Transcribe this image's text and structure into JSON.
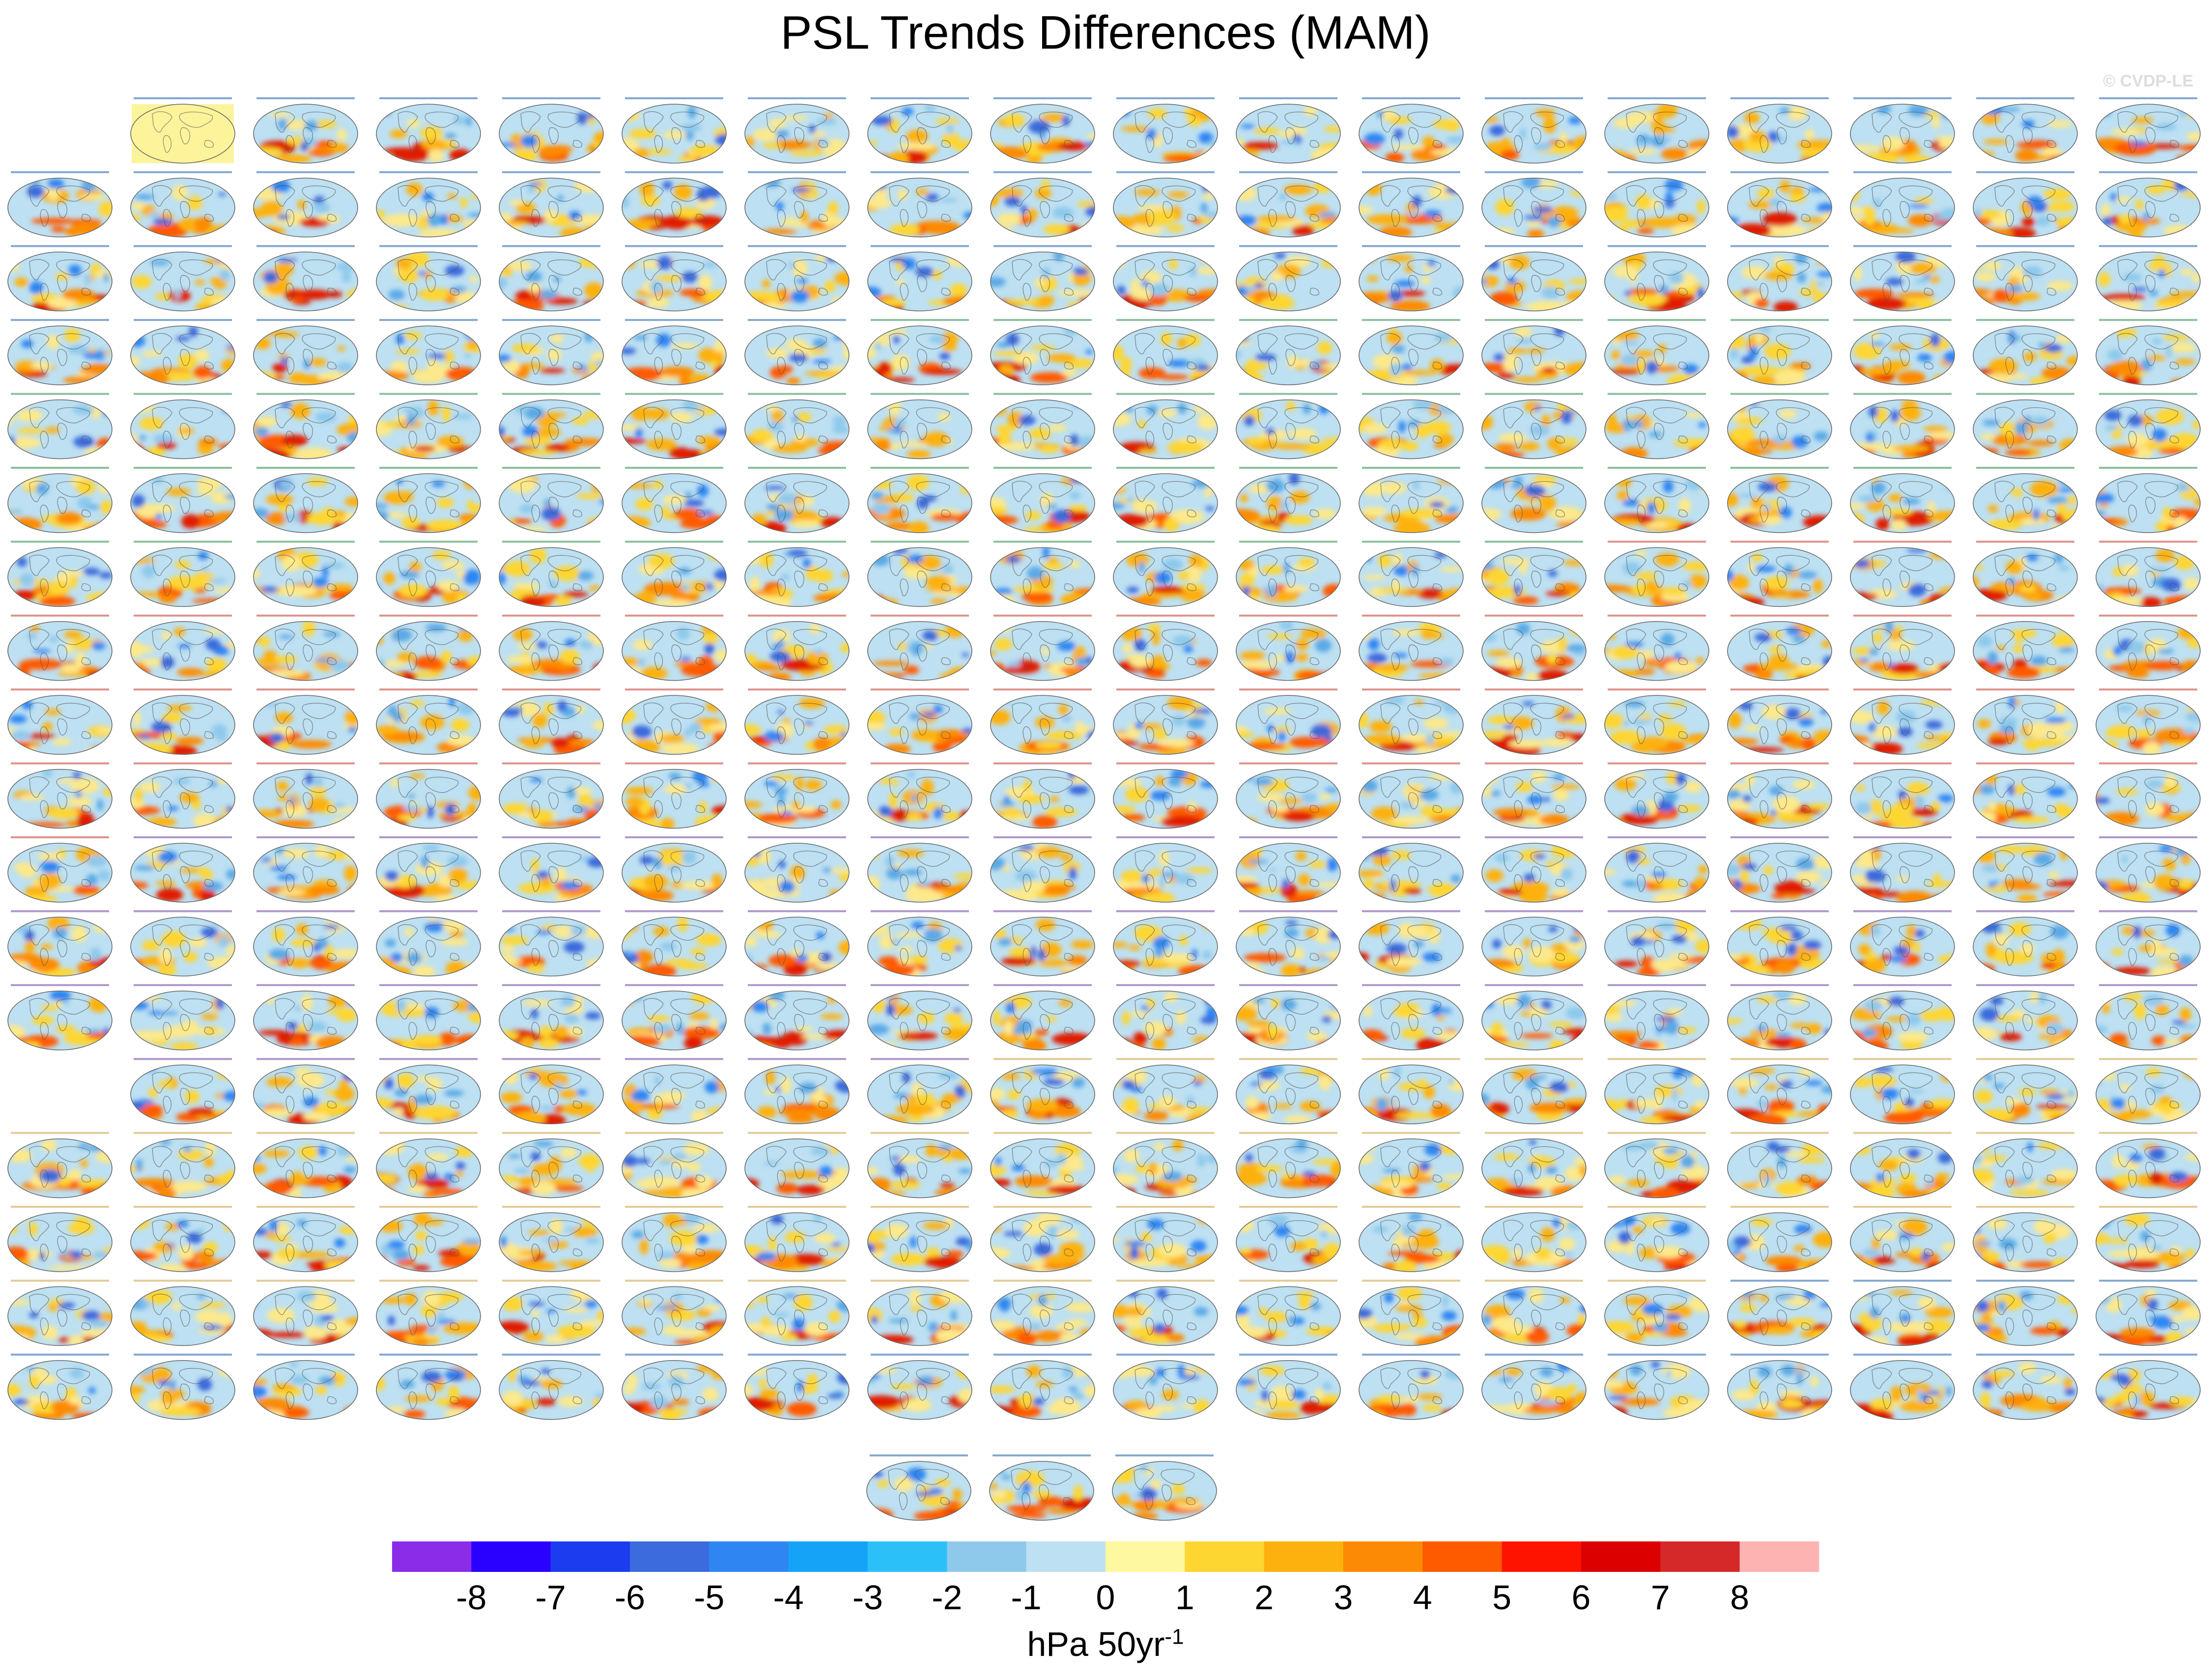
{
  "title": "PSL Trends Differences (MAM)",
  "watermark": "© CVDP-LE",
  "chart_data": {
    "type": "heatmap",
    "title": "PSL Trends Differences (MAM)",
    "description_panels": "Grid of small global map panels showing sea-level-pressure trend differences for ensemble members",
    "colorbar": {
      "units_base": "hPa 50yr",
      "units_exp": "-1",
      "tick_labels": [
        "-8",
        "-7",
        "-6",
        "-5",
        "-4",
        "-3",
        "-2",
        "-1",
        "0",
        "1",
        "2",
        "3",
        "4",
        "5",
        "6",
        "7",
        "8"
      ],
      "colors": [
        "#8a2ce8",
        "#2a00fe",
        "#1c3cf0",
        "#3b6bdc",
        "#2f86f2",
        "#15a3f8",
        "#2cc0f8",
        "#8ec9ec",
        "#bde0f2",
        "#fef8a0",
        "#fed632",
        "#fdb10e",
        "#fd8a04",
        "#fe5a00",
        "#fd1300",
        "#dc0000",
        "#d52929",
        "#feb3b3"
      ]
    }
  }
}
